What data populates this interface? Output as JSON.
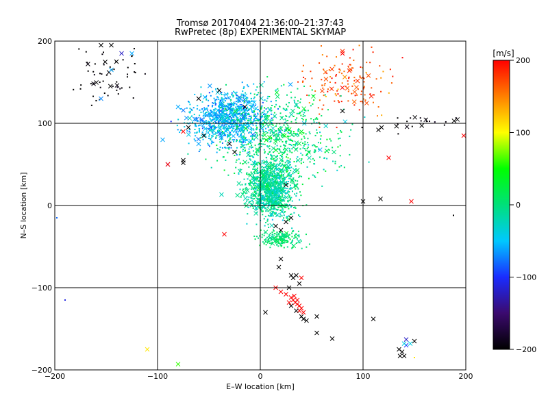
{
  "chart_data": {
    "type": "scatter",
    "title": "Tromsø 20170404 21:36:00–21:37:43",
    "subtitle": "RwPretec (8p) EXPERIMENTAL SKYMAP",
    "xlabel": "E–W location [km]",
    "ylabel": "N–S location [km]",
    "xlim": [
      -200,
      200
    ],
    "ylim": [
      -200,
      200
    ],
    "xticks": [
      -200,
      -100,
      0,
      100,
      200
    ],
    "yticks": [
      -200,
      -100,
      0,
      100,
      200
    ],
    "xtick_labels": [
      "−200",
      "−100",
      "0",
      "100",
      "200"
    ],
    "ytick_labels": [
      "−200",
      "−100",
      "0",
      "100",
      "200"
    ],
    "grid": true,
    "markers": [
      "dot",
      "x"
    ],
    "colorbar": {
      "label": "[m/s]",
      "range": [
        -200,
        200
      ],
      "ticks": [
        -200,
        -100,
        0,
        100,
        200
      ],
      "tick_labels": [
        "−200",
        "−100",
        "0",
        "100",
        "200"
      ],
      "colors": [
        "#000000",
        "#3b0a6e",
        "#1a2cff",
        "#00c8ff",
        "#00e07a",
        "#00ff00",
        "#ffff00",
        "#ff8000",
        "#ff0000"
      ]
    },
    "clusters": [
      {
        "x": -30,
        "y": 105,
        "sx": 28,
        "sy": 22,
        "v": -55,
        "vs": 25
      },
      {
        "x": 10,
        "y": 20,
        "sx": 16,
        "sy": 25,
        "v": -10,
        "vs": 25
      },
      {
        "x": 20,
        "y": -40,
        "sx": 15,
        "sy": 8,
        "v": 5,
        "vs": 15
      },
      {
        "x": 80,
        "y": 150,
        "sx": 30,
        "sy": 25,
        "v": 170,
        "vs": 25
      },
      {
        "x": 20,
        "y": 80,
        "sx": 40,
        "sy": 40,
        "v": 0,
        "vs": 30
      },
      {
        "x": -150,
        "y": 160,
        "sx": 25,
        "sy": 25,
        "v": -200,
        "vs": 10
      },
      {
        "x": 160,
        "y": 100,
        "sx": 35,
        "sy": 6,
        "v": -200,
        "vs": 10
      }
    ],
    "points": [
      {
        "x": -155,
        "y": 195,
        "v": -200,
        "m": "x"
      },
      {
        "x": -145,
        "y": 195,
        "v": -200,
        "m": "x"
      },
      {
        "x": -140,
        "y": 175,
        "v": -200,
        "m": "x"
      },
      {
        "x": -135,
        "y": 185,
        "v": -120,
        "m": "x"
      },
      {
        "x": -145,
        "y": 165,
        "v": -60,
        "m": "x"
      },
      {
        "x": -155,
        "y": 130,
        "v": -70,
        "m": "x"
      },
      {
        "x": -125,
        "y": 185,
        "v": -60,
        "m": "x"
      },
      {
        "x": -90,
        "y": 50,
        "v": -130,
        "m": "x"
      },
      {
        "x": -95,
        "y": 80,
        "v": -60,
        "m": "x"
      },
      {
        "x": -75,
        "y": 55,
        "v": -200,
        "m": "x"
      },
      {
        "x": -75,
        "y": 52,
        "v": -200,
        "m": "x"
      },
      {
        "x": -60,
        "y": 75,
        "v": -60,
        "m": "x"
      },
      {
        "x": -80,
        "y": 120,
        "v": -60,
        "m": "x"
      },
      {
        "x": -70,
        "y": 95,
        "v": -200,
        "m": "x"
      },
      {
        "x": -55,
        "y": 85,
        "v": -200,
        "m": "x"
      },
      {
        "x": -25,
        "y": 65,
        "v": -200,
        "m": "x"
      },
      {
        "x": -30,
        "y": 75,
        "v": -200,
        "m": "x"
      },
      {
        "x": -60,
        "y": 130,
        "v": -200,
        "m": "x"
      },
      {
        "x": -40,
        "y": 140,
        "v": -200,
        "m": "x"
      },
      {
        "x": -15,
        "y": 120,
        "v": -200,
        "m": "x"
      },
      {
        "x": -90,
        "y": 50,
        "v": 200,
        "m": "x"
      },
      {
        "x": -75,
        "y": 90,
        "v": 200,
        "m": "x"
      },
      {
        "x": -35,
        "y": -35,
        "v": 200,
        "m": "x"
      },
      {
        "x": 25,
        "y": 25,
        "v": -200,
        "m": "x"
      },
      {
        "x": 30,
        "y": -15,
        "v": -200,
        "m": "x"
      },
      {
        "x": 25,
        "y": -20,
        "v": -200,
        "m": "x"
      },
      {
        "x": 20,
        "y": -30,
        "v": -200,
        "m": "x"
      },
      {
        "x": 15,
        "y": -25,
        "v": -200,
        "m": "x"
      },
      {
        "x": 20,
        "y": -65,
        "v": -200,
        "m": "x"
      },
      {
        "x": 18,
        "y": -75,
        "v": -200,
        "m": "x"
      },
      {
        "x": 30,
        "y": -85,
        "v": -200,
        "m": "x"
      },
      {
        "x": 32,
        "y": -88,
        "v": -200,
        "m": "x"
      },
      {
        "x": 35,
        "y": -85,
        "v": -200,
        "m": "x"
      },
      {
        "x": 38,
        "y": -95,
        "v": -200,
        "m": "x"
      },
      {
        "x": 15,
        "y": -100,
        "v": 200,
        "m": "x"
      },
      {
        "x": 20,
        "y": -105,
        "v": 200,
        "m": "x"
      },
      {
        "x": 25,
        "y": -108,
        "v": 200,
        "m": "x"
      },
      {
        "x": 40,
        "y": -88,
        "v": 200,
        "m": "x"
      },
      {
        "x": 30,
        "y": -112,
        "v": 200,
        "m": "x"
      },
      {
        "x": 32,
        "y": -115,
        "v": 200,
        "m": "x"
      },
      {
        "x": 34,
        "y": -118,
        "v": 200,
        "m": "x"
      },
      {
        "x": 36,
        "y": -120,
        "v": 200,
        "m": "x"
      },
      {
        "x": 36,
        "y": -115,
        "v": 200,
        "m": "x"
      },
      {
        "x": 38,
        "y": -122,
        "v": 200,
        "m": "x"
      },
      {
        "x": 40,
        "y": -125,
        "v": 200,
        "m": "x"
      },
      {
        "x": 38,
        "y": -128,
        "v": 200,
        "m": "x"
      },
      {
        "x": 42,
        "y": -130,
        "v": 200,
        "m": "x"
      },
      {
        "x": 28,
        "y": -118,
        "v": 200,
        "m": "x"
      },
      {
        "x": 33,
        "y": -110,
        "v": 200,
        "m": "x"
      },
      {
        "x": 30,
        "y": -122,
        "v": -200,
        "m": "x"
      },
      {
        "x": 35,
        "y": -128,
        "v": -200,
        "m": "x"
      },
      {
        "x": 40,
        "y": -135,
        "v": -200,
        "m": "x"
      },
      {
        "x": 42,
        "y": -138,
        "v": -200,
        "m": "x"
      },
      {
        "x": 45,
        "y": -140,
        "v": -200,
        "m": "x"
      },
      {
        "x": 5,
        "y": -130,
        "v": -200,
        "m": "x"
      },
      {
        "x": 28,
        "y": -100,
        "v": -200,
        "m": "x"
      },
      {
        "x": 55,
        "y": -135,
        "v": -200,
        "m": "x"
      },
      {
        "x": 55,
        "y": -155,
        "v": -200,
        "m": "x"
      },
      {
        "x": 70,
        "y": -162,
        "v": -200,
        "m": "x"
      },
      {
        "x": 110,
        "y": -138,
        "v": -200,
        "m": "x"
      },
      {
        "x": 135,
        "y": -175,
        "v": -200,
        "m": "x"
      },
      {
        "x": 138,
        "y": -178,
        "v": -200,
        "m": "x"
      },
      {
        "x": 140,
        "y": -183,
        "v": -200,
        "m": "x"
      },
      {
        "x": 136,
        "y": -183,
        "v": -200,
        "m": "x"
      },
      {
        "x": 150,
        "y": -165,
        "v": -200,
        "m": "x"
      },
      {
        "x": 142,
        "y": -163,
        "v": -120,
        "m": "x"
      },
      {
        "x": 142,
        "y": -170,
        "v": -100,
        "m": "x"
      },
      {
        "x": 146,
        "y": -168,
        "v": -40,
        "m": "x"
      },
      {
        "x": 140,
        "y": -168,
        "v": -40,
        "m": "x"
      },
      {
        "x": 80,
        "y": 115,
        "v": -200,
        "m": "x"
      },
      {
        "x": 100,
        "y": 5,
        "v": -200,
        "m": "x"
      },
      {
        "x": 115,
        "y": 92,
        "v": -200,
        "m": "x"
      },
      {
        "x": 118,
        "y": 95,
        "v": -200,
        "m": "x"
      },
      {
        "x": 117,
        "y": 8,
        "v": -200,
        "m": "x"
      },
      {
        "x": 147,
        "y": 5,
        "v": 200,
        "m": "x"
      },
      {
        "x": 125,
        "y": 58,
        "v": 200,
        "m": "x"
      },
      {
        "x": 198,
        "y": 85,
        "v": 200,
        "m": "x"
      },
      {
        "x": 80,
        "y": 185,
        "v": 200,
        "m": "x"
      },
      {
        "x": -110,
        "y": -175,
        "v": 110,
        "m": "x"
      },
      {
        "x": -80,
        "y": -193,
        "v": 60,
        "m": "x"
      },
      {
        "x": -190,
        "y": -115,
        "v": -110,
        "m": "dot"
      },
      {
        "x": -198,
        "y": -15,
        "v": -80,
        "m": "dot"
      },
      {
        "x": 188,
        "y": -12,
        "v": -200,
        "m": "dot"
      },
      {
        "x": 150,
        "y": -185,
        "v": 110,
        "m": "dot"
      }
    ]
  }
}
